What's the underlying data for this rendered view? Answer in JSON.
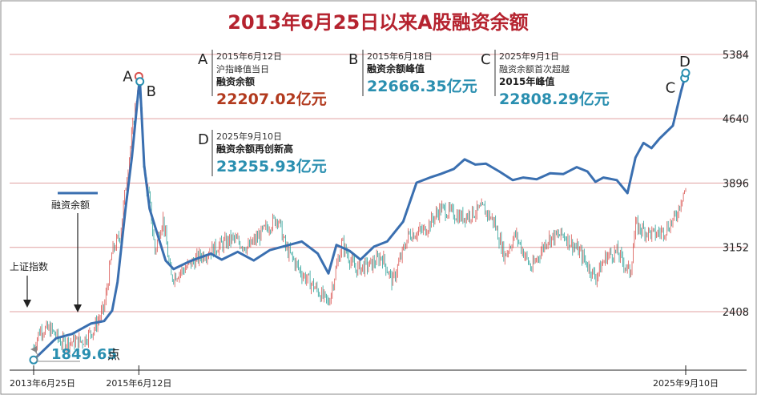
{
  "colors": {
    "title": "#b5232f",
    "grid": "#e0a0a0",
    "margin_line": "#3a6fb0",
    "candle_up": "#d9534f",
    "candle_down": "#2aa198",
    "value_red": "#b23a1e",
    "value_teal": "#2a8fb0",
    "marker": "#2a8fb0"
  },
  "chart_data": {
    "type": "line",
    "title": "2013年6月25日以来A股融资余额",
    "y_ticks": [
      2408,
      3152,
      3896,
      4640,
      5384
    ],
    "ylim": [
      1750,
      5550
    ],
    "xlim": [
      2013.48,
      2025.9
    ],
    "x_tick_labels": [
      {
        "x": 2013.48,
        "label": "2013年6月25日"
      },
      {
        "x": 2015.45,
        "label": "2015年6月12日"
      },
      {
        "x": 2025.69,
        "label": "2025年9月10日"
      }
    ],
    "series": [
      {
        "name": "融资余额",
        "style": "line",
        "points": [
          [
            2013.48,
            1850
          ],
          [
            2013.9,
            2100
          ],
          [
            2014.2,
            2150
          ],
          [
            2014.55,
            2270
          ],
          [
            2014.8,
            2300
          ],
          [
            2014.95,
            2420
          ],
          [
            2015.05,
            2750
          ],
          [
            2015.2,
            3600
          ],
          [
            2015.32,
            4200
          ],
          [
            2015.45,
            5010
          ],
          [
            2015.47,
            5070
          ],
          [
            2015.55,
            4100
          ],
          [
            2015.65,
            3600
          ],
          [
            2015.8,
            3300
          ],
          [
            2015.95,
            3000
          ],
          [
            2016.1,
            2900
          ],
          [
            2016.4,
            2990
          ],
          [
            2016.8,
            3080
          ],
          [
            2017.0,
            3010
          ],
          [
            2017.3,
            3100
          ],
          [
            2017.6,
            3000
          ],
          [
            2017.9,
            3120
          ],
          [
            2018.2,
            3170
          ],
          [
            2018.5,
            3220
          ],
          [
            2018.8,
            3080
          ],
          [
            2019.0,
            2850
          ],
          [
            2019.15,
            3180
          ],
          [
            2019.4,
            3110
          ],
          [
            2019.6,
            3010
          ],
          [
            2019.85,
            3160
          ],
          [
            2020.1,
            3220
          ],
          [
            2020.4,
            3450
          ],
          [
            2020.65,
            3900
          ],
          [
            2020.9,
            3960
          ],
          [
            2021.1,
            4000
          ],
          [
            2021.35,
            4060
          ],
          [
            2021.55,
            4170
          ],
          [
            2021.75,
            4110
          ],
          [
            2021.95,
            4120
          ],
          [
            2022.2,
            4030
          ],
          [
            2022.45,
            3930
          ],
          [
            2022.65,
            3960
          ],
          [
            2022.9,
            3940
          ],
          [
            2023.15,
            4010
          ],
          [
            2023.4,
            4000
          ],
          [
            2023.65,
            4080
          ],
          [
            2023.85,
            4030
          ],
          [
            2024.0,
            3910
          ],
          [
            2024.15,
            3960
          ],
          [
            2024.4,
            3930
          ],
          [
            2024.6,
            3780
          ],
          [
            2024.75,
            4190
          ],
          [
            2024.9,
            4360
          ],
          [
            2025.05,
            4300
          ],
          [
            2025.2,
            4410
          ],
          [
            2025.45,
            4560
          ],
          [
            2025.6,
            4950
          ],
          [
            2025.67,
            5110
          ],
          [
            2025.69,
            5170
          ]
        ]
      },
      {
        "name": "上证指数",
        "style": "candlestick",
        "points": [
          [
            2013.48,
            2000
          ],
          [
            2013.6,
            2200
          ],
          [
            2013.8,
            2200
          ],
          [
            2014.0,
            2050
          ],
          [
            2014.2,
            2060
          ],
          [
            2014.4,
            2070
          ],
          [
            2014.6,
            2200
          ],
          [
            2014.8,
            2450
          ],
          [
            2014.95,
            3100
          ],
          [
            2015.1,
            3300
          ],
          [
            2015.25,
            4100
          ],
          [
            2015.45,
            5100
          ],
          [
            2015.55,
            4000
          ],
          [
            2015.65,
            3700
          ],
          [
            2015.75,
            3100
          ],
          [
            2015.9,
            3500
          ],
          [
            2016.05,
            2800
          ],
          [
            2016.3,
            2900
          ],
          [
            2016.6,
            3050
          ],
          [
            2016.9,
            3150
          ],
          [
            2017.2,
            3250
          ],
          [
            2017.5,
            3150
          ],
          [
            2017.8,
            3350
          ],
          [
            2018.05,
            3500
          ],
          [
            2018.2,
            3150
          ],
          [
            2018.5,
            2850
          ],
          [
            2018.8,
            2650
          ],
          [
            2019.0,
            2500
          ],
          [
            2019.25,
            3200
          ],
          [
            2019.5,
            2900
          ],
          [
            2019.8,
            2950
          ],
          [
            2020.0,
            3050
          ],
          [
            2020.2,
            2750
          ],
          [
            2020.5,
            3300
          ],
          [
            2020.8,
            3350
          ],
          [
            2021.1,
            3600
          ],
          [
            2021.5,
            3500
          ],
          [
            2021.9,
            3600
          ],
          [
            2022.1,
            3450
          ],
          [
            2022.3,
            3050
          ],
          [
            2022.5,
            3300
          ],
          [
            2022.8,
            2900
          ],
          [
            2023.1,
            3250
          ],
          [
            2023.4,
            3300
          ],
          [
            2023.7,
            3100
          ],
          [
            2024.0,
            2800
          ],
          [
            2024.2,
            3050
          ],
          [
            2024.4,
            3100
          ],
          [
            2024.65,
            2850
          ],
          [
            2024.75,
            3400
          ],
          [
            2024.9,
            3350
          ],
          [
            2025.1,
            3300
          ],
          [
            2025.3,
            3350
          ],
          [
            2025.5,
            3500
          ],
          [
            2025.65,
            3800
          ],
          [
            2025.69,
            3800
          ]
        ]
      }
    ],
    "markers": [
      {
        "letter": "A",
        "x": 2015.45,
        "y": 5130,
        "color": "#d9534f"
      },
      {
        "letter": "B",
        "x": 2015.47,
        "y": 5070,
        "color": "#2a8fb0"
      },
      {
        "letter": "C",
        "x": 2025.67,
        "y": 5110,
        "color": "#2a8fb0"
      },
      {
        "letter": "D",
        "x": 2025.69,
        "y": 5170,
        "color": "#2a8fb0"
      },
      {
        "letter": "",
        "x": 2013.48,
        "y": 1850,
        "color": "#2a8fb0"
      }
    ],
    "annotations": [
      {
        "letter": "A",
        "date": "2015年6月12日",
        "lines": [
          "沪指峰值当日",
          "融资余额"
        ],
        "value": "22207.02亿元",
        "value_color": "#b23a1e"
      },
      {
        "letter": "B",
        "date": "2015年6月18日",
        "lines": [
          "融资余额峰值"
        ],
        "value": "22666.35亿元",
        "value_color": "#2a8fb0"
      },
      {
        "letter": "C",
        "date": "2025年9月1日",
        "lines": [
          "融资余额首次超越",
          "2015年峰值"
        ],
        "value": "22808.29亿元",
        "value_color": "#2a8fb0"
      },
      {
        "letter": "D",
        "date": "2025年9月10日",
        "lines": [
          "融资余额再创新高"
        ],
        "value": "23255.93亿元",
        "value_color": "#2a8fb0"
      }
    ],
    "labels": {
      "margin_series": "融资余额",
      "index_series": "上证指数",
      "min_value": "1849.65",
      "min_unit": "点"
    }
  }
}
